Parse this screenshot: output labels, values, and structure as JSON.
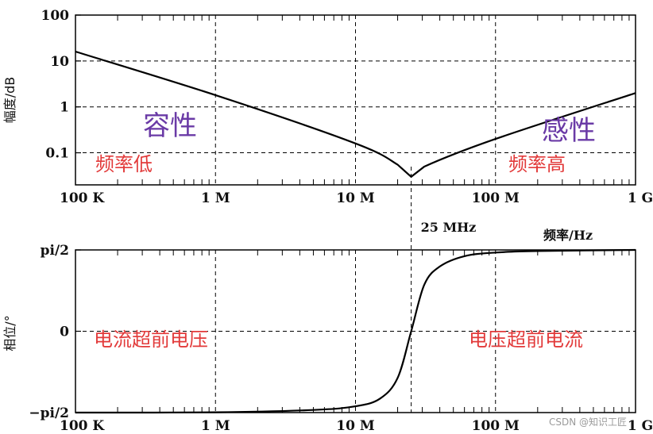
{
  "chart_data": [
    {
      "type": "line",
      "x_scale": "log",
      "y_scale": "log",
      "xlim": [
        100000,
        1000000000
      ],
      "ylim": [
        0.02,
        100
      ],
      "x_ticks": [
        {
          "value": 100000,
          "label": "100 K"
        },
        {
          "value": 1000000,
          "label": "1 M"
        },
        {
          "value": 10000000,
          "label": "10 M"
        },
        {
          "value": 100000000,
          "label": "100 M"
        },
        {
          "value": 1000000000,
          "label": "1 G"
        }
      ],
      "y_ticks": [
        {
          "value": 100,
          "label": "100"
        },
        {
          "value": 10,
          "label": "10"
        },
        {
          "value": 1,
          "label": "1"
        },
        {
          "value": 0.1,
          "label": "0.1"
        }
      ],
      "ylabel": "幅度/dB",
      "grid": true,
      "series": [
        {
          "x": [
            100000,
            1000000,
            10000000,
            20000000,
            25000000,
            31000000,
            100000000,
            1000000000
          ],
          "y": [
            16,
            1.8,
            0.16,
            0.055,
            0.03,
            0.05,
            0.2,
            2
          ]
        }
      ],
      "annotations": {
        "left_region": "容性",
        "right_region": "感性",
        "left_sub": "频率低",
        "right_sub": "频率高"
      }
    },
    {
      "type": "line",
      "x_scale": "log",
      "xlim": [
        100000,
        1000000000
      ],
      "ylim": [
        -1.5708,
        1.5708
      ],
      "x_ticks": [
        {
          "value": 100000,
          "label": "100 K"
        },
        {
          "value": 1000000,
          "label": "1 M"
        },
        {
          "value": 10000000,
          "label": "10 M"
        },
        {
          "value": 100000000,
          "label": "100 M"
        },
        {
          "value": 1000000000,
          "label": "1 G"
        }
      ],
      "y_ticks": [
        {
          "value": 1.5708,
          "label": "pi/2"
        },
        {
          "value": 0,
          "label": "0"
        },
        {
          "value": -1.5708,
          "label": "−pi/2"
        }
      ],
      "ylabel": "相位/°",
      "xlabel": "频率/Hz",
      "grid": true,
      "series": [
        {
          "x": [
            100000,
            1000000,
            5000000,
            10000000,
            15000000,
            20000000,
            25000000,
            31000000,
            40000000,
            60000000,
            100000000,
            200000000,
            1000000000
          ],
          "y": [
            -1.5708,
            -1.565,
            -1.52,
            -1.45,
            -1.3,
            -0.9,
            0,
            0.9,
            1.25,
            1.45,
            1.52,
            1.55,
            1.5708
          ]
        }
      ],
      "annotations": {
        "left_region": "电流超前电压",
        "right_region": "电压超前电流"
      }
    }
  ],
  "resonance_label": "25 MHz",
  "resonance_freq": 25000000,
  "watermark": "CSDN @知识工匠"
}
